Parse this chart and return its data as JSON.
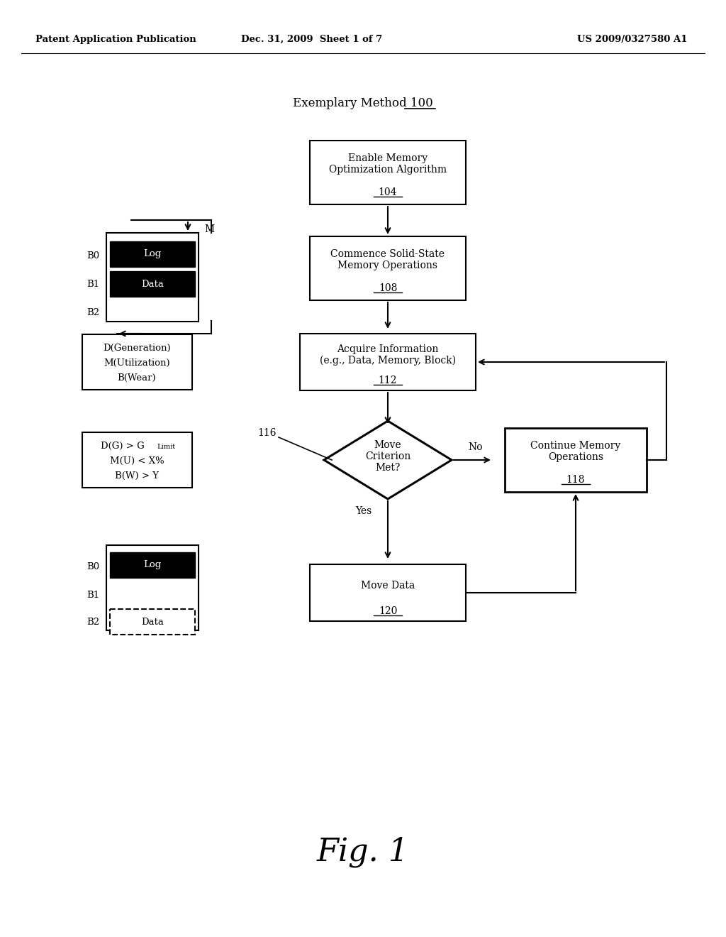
{
  "bg_color": "#ffffff",
  "header_left": "Patent Application Publication",
  "header_mid": "Dec. 31, 2009  Sheet 1 of 7",
  "header_right": "US 2009/0327580 A1",
  "fig_label": "Fig. 1"
}
